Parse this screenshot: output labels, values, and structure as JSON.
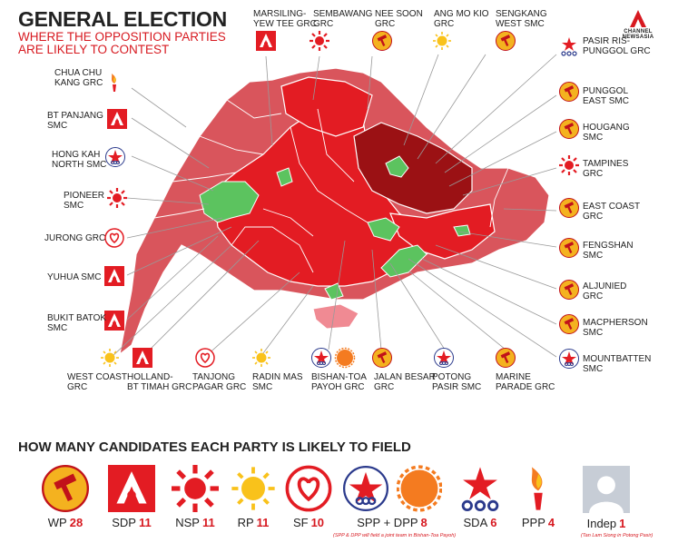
{
  "header": {
    "title": "GENERAL ELECTION",
    "subtitle_line1": "WHERE THE OPPOSITION PARTIES",
    "subtitle_line2": "ARE LIKELY TO CONTEST",
    "brand": "CHANNEL NEWSASIA"
  },
  "colors": {
    "light_red": "#d9555c",
    "red": "#e31c23",
    "dark_red": "#9b1114",
    "green": "#5cc35f",
    "pink": "#f08a93",
    "accent": "#d71920"
  },
  "constituencies": {
    "chua_chu_kang": "CHUA CHU\nKANG GRC",
    "bt_panjang": "BT PANJANG\nSMC",
    "hong_kah": "HONG KAH\nNORTH SMC",
    "pioneer": "PIONEER\nSMC",
    "jurong": "JURONG GRC",
    "yuhua": "YUHUA SMC",
    "bukit_batok": "BUKIT BATOK\nSMC",
    "marsiling": "MARSILING-\nYEW TEE GRC",
    "sembawang": "SEMBAWANG\nGRC",
    "nee_soon": "NEE SOON\nGRC",
    "ang_mo_kio": "ANG MO KIO\nGRC",
    "sengkang": "SENGKANG\nWEST SMC",
    "pasir_ris": "PASIR RIS-\nPUNGGOL GRC",
    "punggol_east": "PUNGGOL\nEAST SMC",
    "hougang": "HOUGANG\nSMC",
    "tampines": "TAMPINES\nGRC",
    "east_coast": "EAST COAST\nGRC",
    "fengshan": "FENGSHAN\nSMC",
    "aljunied": "ALJUNIED\nGRC",
    "macpherson": "MACPHERSON\nSMC",
    "mountbatten": "MOUNTBATTEN\nSMC",
    "west_coast": "WEST COAST\nGRC",
    "holland": "HOLLAND-\nBT TIMAH GRC",
    "tanjong_pagar": "TANJONG\nPAGAR GRC",
    "radin_mas": "RADIN MAS\nSMC",
    "bishan": "BISHAN-TOA\nPAYOH GRC",
    "jalan_besar": "JALAN BESAR\nGRC",
    "potong_pasir": "POTONG\nPASIR SMC",
    "marine_parade": "MARINE\nPARADE GRC"
  },
  "parties_section": {
    "title": "HOW MANY CANDIDATES EACH PARTY IS LIKELY TO FIELD",
    "parties": [
      {
        "name": "WP",
        "count": "28",
        "icon": "wp-hammer-icon"
      },
      {
        "name": "SDP",
        "count": "11",
        "icon": "sdp-icon"
      },
      {
        "name": "NSP",
        "count": "11",
        "icon": "nsp-sun-icon"
      },
      {
        "name": "RP",
        "count": "11",
        "icon": "rp-sun-icon"
      },
      {
        "name": "SF",
        "count": "10",
        "icon": "sf-heart-icon"
      },
      {
        "name": "SPP + DPP",
        "count": "8",
        "icon": "spp-dpp-icon"
      },
      {
        "name": "SDA",
        "count": "6",
        "icon": "sda-star-icon"
      },
      {
        "name": "PPP",
        "count": "4",
        "icon": "ppp-torch-icon"
      },
      {
        "name": "Indep",
        "count": "1",
        "icon": "person-silhouette-icon"
      }
    ],
    "spp_note": "(SPP & DPP will field a joint team in Bishan-Toa Payoh)",
    "indep_note": "(Tan Lam Siong in Potong Pasir)"
  }
}
